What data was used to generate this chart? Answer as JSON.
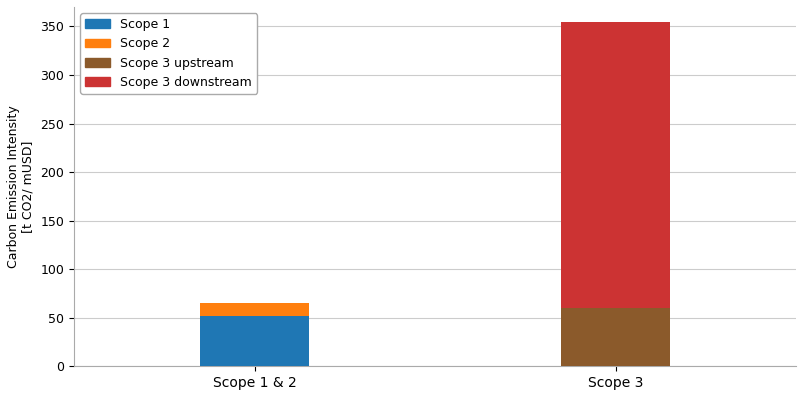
{
  "categories": [
    "Scope 1 & 2",
    "Scope 3"
  ],
  "scope1_val": 52,
  "scope2_val": 13,
  "scope3_upstream_val": 60,
  "scope3_downstream_val": 295,
  "colors": {
    "scope1": "#1f77b4",
    "scope2": "#ff7f0e",
    "scope3_upstream": "#8B5A2B",
    "scope3_downstream": "#cc3333"
  },
  "legend_labels": [
    "Scope 1",
    "Scope 2",
    "Scope 3 upstream",
    "Scope 3 downstream"
  ],
  "ylabel": "Carbon Emission Intensity\n[t CO2/ mUSD]",
  "ylim": [
    0,
    370
  ],
  "yticks": [
    0,
    50,
    100,
    150,
    200,
    250,
    300,
    350
  ],
  "bar_width": 0.15,
  "x_positions": [
    0.25,
    0.75
  ],
  "xlim": [
    0,
    1
  ],
  "background_color": "#ffffff",
  "grid_color": "#cccccc",
  "figsize": [
    8.03,
    3.97
  ],
  "dpi": 100
}
